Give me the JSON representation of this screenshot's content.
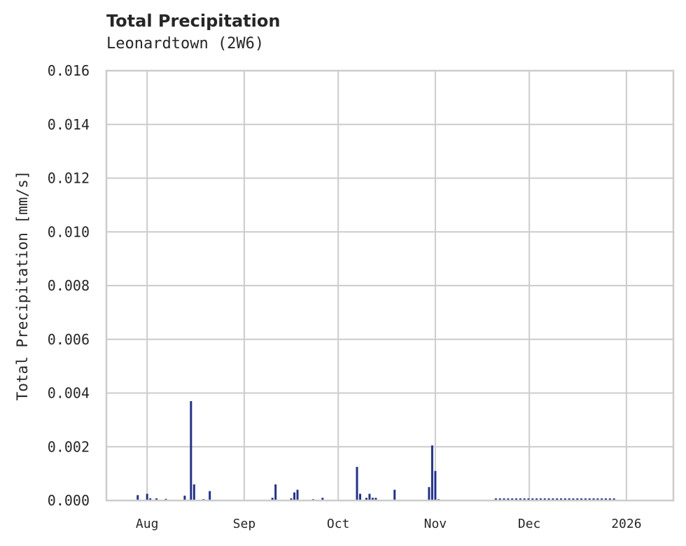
{
  "chart": {
    "title": "Total Precipitation",
    "subtitle": "Leonardtown (2W6)",
    "ylabel": "Total Precipitation [mm/s]",
    "series_color": "#233288",
    "grid_color": "#cccccc"
  },
  "chart_data": {
    "type": "line",
    "title": "Total Precipitation",
    "subtitle": "Leonardtown (2W6)",
    "xlabel": "",
    "ylabel": "Total Precipitation [mm/s]",
    "ylim": [
      0,
      0.016
    ],
    "yticks": [
      "0.000",
      "0.002",
      "0.004",
      "0.006",
      "0.008",
      "0.010",
      "0.012",
      "0.014",
      "0.016"
    ],
    "xticks": [
      "Aug",
      "Sep",
      "Oct",
      "Nov",
      "Dec",
      "2026"
    ],
    "xlim": [
      "2025-07-19",
      "2026-01-16"
    ],
    "grid": true,
    "legend": null,
    "series": [
      {
        "name": "Total Precipitation",
        "points": [
          [
            "2025-07-29",
            0.0002
          ],
          [
            "2025-08-01",
            0.00025
          ],
          [
            "2025-08-02",
            8e-05
          ],
          [
            "2025-08-04",
            8e-05
          ],
          [
            "2025-08-07",
            6e-05
          ],
          [
            "2025-08-13",
            0.00018
          ],
          [
            "2025-08-15",
            0.0037
          ],
          [
            "2025-08-16",
            0.0006
          ],
          [
            "2025-08-19",
            5e-05
          ],
          [
            "2025-08-21",
            0.00035
          ],
          [
            "2025-09-10",
            0.0001
          ],
          [
            "2025-09-11",
            0.0006
          ],
          [
            "2025-09-16",
            8e-05
          ],
          [
            "2025-09-17",
            0.0003
          ],
          [
            "2025-09-18",
            0.0004
          ],
          [
            "2025-09-23",
            5e-05
          ],
          [
            "2025-09-26",
            0.0001
          ],
          [
            "2025-10-07",
            0.00125
          ],
          [
            "2025-10-08",
            0.00025
          ],
          [
            "2025-10-10",
            0.0001
          ],
          [
            "2025-10-11",
            0.00025
          ],
          [
            "2025-10-12",
            0.0001
          ],
          [
            "2025-10-13",
            0.0001
          ],
          [
            "2025-10-19",
            0.0004
          ],
          [
            "2025-10-30",
            0.0005
          ],
          [
            "2025-10-31",
            0.00205
          ],
          [
            "2025-11-01",
            0.0011
          ],
          [
            "2025-11-02",
            5e-05
          ],
          [
            "2025-11-20",
            3e-05
          ],
          [
            "2025-12-10",
            3e-05
          ],
          [
            "2025-12-25",
            3e-05
          ]
        ]
      }
    ]
  }
}
